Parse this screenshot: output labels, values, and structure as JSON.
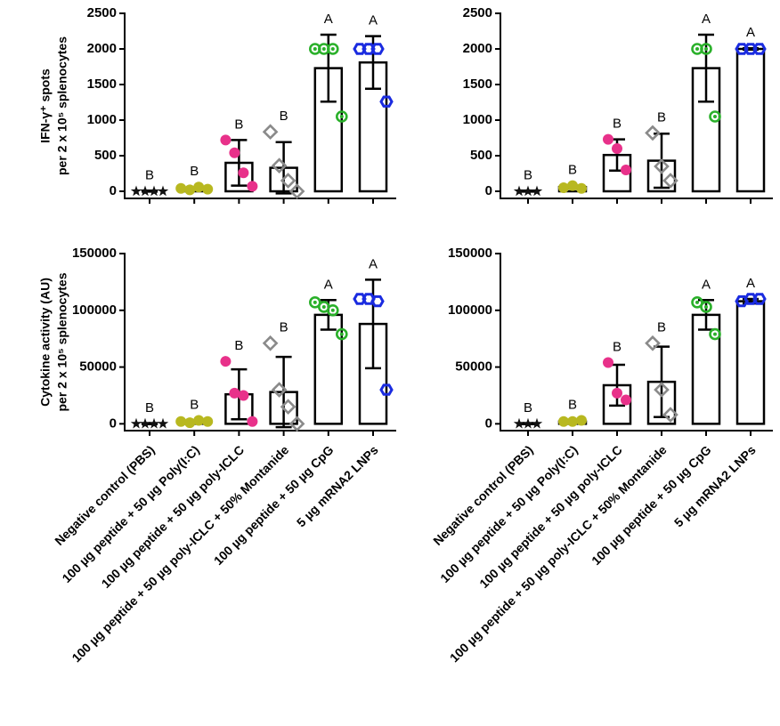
{
  "chart_data": [
    {
      "type": "bar",
      "ylabel": [
        "IFN-γ⁺ spots",
        "per 2 x 10⁵ splenocytes"
      ],
      "ylim": [
        -100,
        2500
      ],
      "yticks": [
        0,
        500,
        1000,
        1500,
        2000,
        2500
      ],
      "values": [
        0,
        30,
        400,
        330,
        1730,
        1810
      ],
      "errors": [
        5,
        20,
        320,
        360,
        470,
        370
      ],
      "points": [
        [
          0,
          0,
          0,
          0
        ],
        [
          40,
          20,
          60,
          30
        ],
        [
          720,
          540,
          260,
          70
        ],
        [
          835,
          360,
          150,
          0
        ],
        [
          2000,
          2000,
          2000,
          1050
        ],
        [
          2000,
          2000,
          2000,
          1260
        ]
      ],
      "letters": [
        "B",
        "B",
        "B",
        "B",
        "A",
        "A"
      ],
      "colors": [
        "#111111",
        "#b8b820",
        "#e8318a",
        "#8a8a8a",
        "#2ab02a",
        "#1a2be0"
      ],
      "markers": [
        "star",
        "dot",
        "dot",
        "diamond",
        "ring",
        "hexagon"
      ]
    },
    {
      "type": "bar",
      "ylim": [
        -100,
        2500
      ],
      "yticks": [
        0,
        500,
        1000,
        1500,
        2000,
        2500
      ],
      "values": [
        0,
        60,
        510,
        430,
        1730,
        2000
      ],
      "errors": [
        5,
        20,
        220,
        380,
        470,
        10
      ],
      "points": [
        [
          0,
          0,
          0
        ],
        [
          50,
          80,
          40
        ],
        [
          730,
          600,
          300
        ],
        [
          820,
          350,
          150
        ],
        [
          2000,
          2000,
          1050
        ],
        [
          2000,
          2000,
          2000
        ]
      ],
      "letters": [
        "B",
        "B",
        "B",
        "B",
        "A",
        "A"
      ],
      "colors": [
        "#111111",
        "#b8b820",
        "#e8318a",
        "#8a8a8a",
        "#2ab02a",
        "#1a2be0"
      ],
      "markers": [
        "star",
        "dot",
        "dot",
        "diamond",
        "ring",
        "hexagon"
      ]
    },
    {
      "type": "bar",
      "ylabel": [
        "Cytokine activity (AU)",
        "per 2 x 10⁵ splenocytes"
      ],
      "ylim": [
        -6000,
        150000
      ],
      "yticks": [
        0,
        50000,
        100000,
        150000
      ],
      "categories": [
        "Negative control (PBS)",
        "100 µg peptide + 50 µg Poly(I:C)",
        "100 µg peptide + 50 µg poly-ICLC",
        "100 µg peptide + 50 µg poly-ICLC + 50% Montanide",
        "100 µg peptide + 50 µg CpG",
        "5 µg mRNA2 LNPs"
      ],
      "values": [
        0,
        2000,
        26000,
        28000,
        96000,
        88000
      ],
      "errors": [
        300,
        800,
        22000,
        31000,
        13000,
        39000
      ],
      "points": [
        [
          0,
          0,
          0,
          0
        ],
        [
          2000,
          1000,
          3000,
          2000
        ],
        [
          55000,
          27000,
          25000,
          2000
        ],
        [
          71000,
          30000,
          15000,
          0
        ],
        [
          107000,
          103000,
          100000,
          79000
        ],
        [
          110000,
          110000,
          108000,
          30000
        ]
      ],
      "letters": [
        "B",
        "B",
        "B",
        "B",
        "A",
        "A"
      ],
      "colors": [
        "#111111",
        "#b8b820",
        "#e8318a",
        "#8a8a8a",
        "#2ab02a",
        "#1a2be0"
      ],
      "markers": [
        "star",
        "dot",
        "dot",
        "diamond",
        "ring",
        "hexagon"
      ]
    },
    {
      "type": "bar",
      "ylim": [
        -6000,
        150000
      ],
      "yticks": [
        0,
        50000,
        100000,
        150000
      ],
      "categories": [
        "Negative control (PBS)",
        "100 µg peptide + 50 µg Poly(I:C)",
        "100 µg peptide + 50 µg poly-ICLC",
        "100 µg peptide + 50 µg poly-ICLC + 50% Montanide",
        "100 µg peptide + 50 µg CpG",
        "5 µg mRNA2 LNPs"
      ],
      "values": [
        0,
        2000,
        34000,
        37000,
        96000,
        108000
      ],
      "errors": [
        300,
        800,
        18000,
        31000,
        13000,
        2000
      ],
      "points": [
        [
          0,
          0,
          0
        ],
        [
          2000,
          2000,
          3000
        ],
        [
          54000,
          27000,
          21000
        ],
        [
          71000,
          30000,
          8000
        ],
        [
          107000,
          103000,
          79000
        ],
        [
          108000,
          110000,
          110000
        ]
      ],
      "letters": [
        "B",
        "B",
        "B",
        "B",
        "A",
        "A"
      ],
      "colors": [
        "#111111",
        "#b8b820",
        "#e8318a",
        "#8a8a8a",
        "#2ab02a",
        "#1a2be0"
      ],
      "markers": [
        "star",
        "dot",
        "dot",
        "diamond",
        "ring",
        "hexagon"
      ]
    }
  ]
}
